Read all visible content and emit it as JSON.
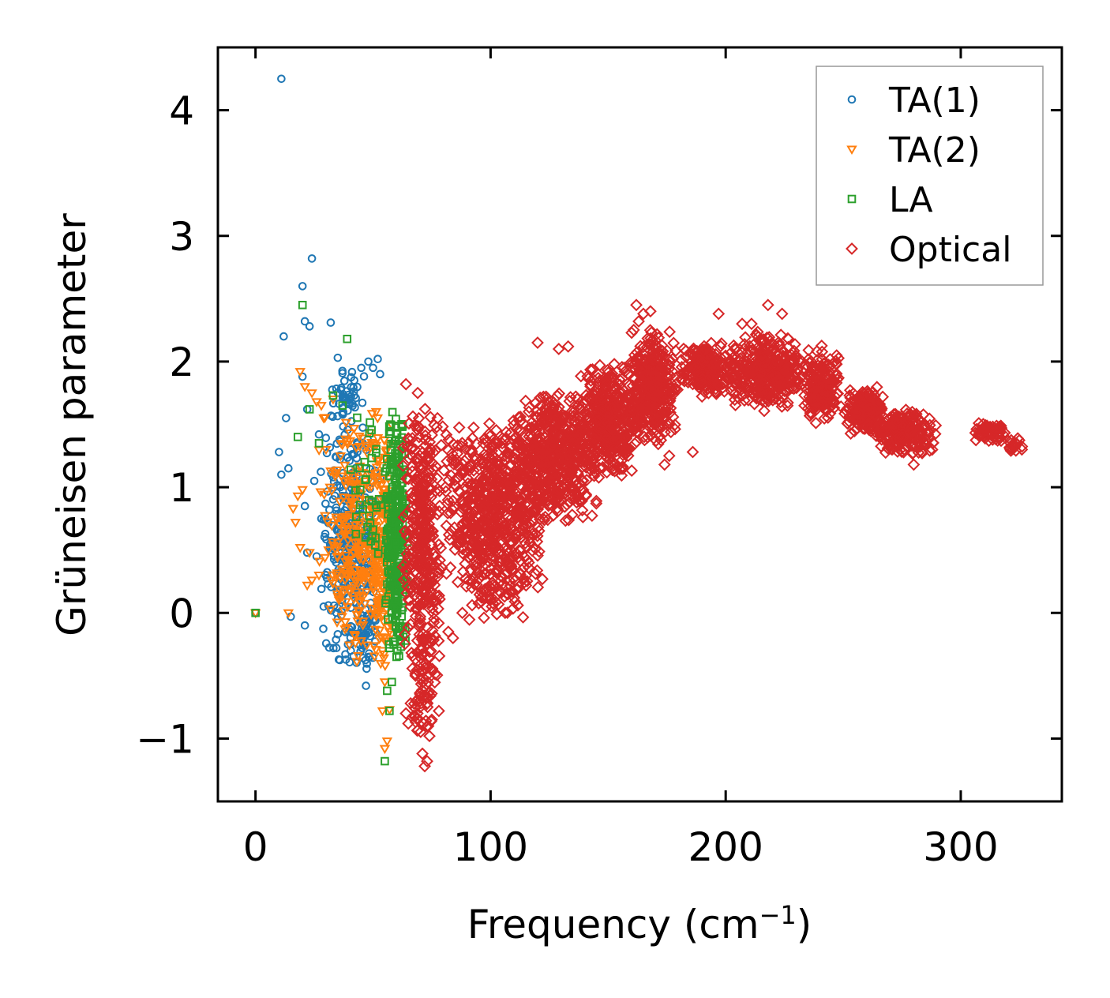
{
  "chart_data": {
    "type": "scatter",
    "title": "",
    "xlabel": "Frequency (cm",
    "xlabel_sup": "−1",
    "xlabel_close": ")",
    "ylabel": "Grüneisen parameter",
    "xlim": [
      -16,
      343
    ],
    "ylim": [
      -1.5,
      4.5
    ],
    "xticks": [
      0,
      100,
      200,
      300
    ],
    "xtick_labels": [
      "0",
      "100",
      "200",
      "300"
    ],
    "yticks": [
      -1,
      0,
      1,
      2,
      3,
      4
    ],
    "ytick_labels": [
      "−1",
      "0",
      "1",
      "2",
      "3",
      "4"
    ],
    "grid": false,
    "legend_position": "top-right",
    "series": [
      {
        "name": "TA(1)",
        "marker": "circle",
        "color": "#1f77b4",
        "points": [
          [
            0,
            0
          ],
          [
            11,
            4.25
          ],
          [
            12,
            2.2
          ],
          [
            10,
            1.28
          ],
          [
            13,
            1.55
          ],
          [
            14,
            1.15
          ],
          [
            11,
            1.1
          ],
          [
            15,
            -0.03
          ],
          [
            20,
            2.6
          ],
          [
            21,
            2.32
          ],
          [
            23,
            2.28
          ],
          [
            24,
            2.82
          ],
          [
            20,
            1.88
          ],
          [
            22,
            1.62
          ],
          [
            25,
            1.05
          ],
          [
            27,
            1.42
          ],
          [
            21,
            0.85
          ],
          [
            22,
            0.48
          ],
          [
            26,
            0.45
          ],
          [
            28,
            0.75
          ],
          [
            29,
            0.05
          ],
          [
            31,
            0.06
          ],
          [
            32,
            2.31
          ],
          [
            35,
            2.03
          ],
          [
            21,
            -0.1
          ],
          [
            38,
            1.72
          ],
          [
            35,
            -0.05
          ],
          [
            36,
            1.0
          ],
          [
            39,
            0.4
          ],
          [
            35,
            -0.17
          ],
          [
            40,
            1.7
          ],
          [
            42,
            1.85
          ],
          [
            45,
            1.95
          ],
          [
            48,
            2.0
          ],
          [
            50,
            1.95
          ],
          [
            52,
            2.02
          ],
          [
            53,
            1.9
          ],
          [
            47,
            -0.58
          ],
          [
            44,
            0.05
          ],
          [
            46,
            0.3
          ]
        ],
        "clusters": [
          {
            "x": [
              27,
              54
            ],
            "y": [
              -0.5,
              1.6
            ],
            "count": 320
          },
          {
            "x": [
              42,
              52
            ],
            "y": [
              -0.45,
              0.1
            ],
            "count": 50
          },
          {
            "x": [
              30,
              48
            ],
            "y": [
              1.5,
              1.95
            ],
            "count": 45
          }
        ]
      },
      {
        "name": "TA(2)",
        "marker": "triangle-down",
        "color": "#ff7f0e",
        "points": [
          [
            0,
            0
          ],
          [
            14,
            0.0
          ],
          [
            18,
            0.93
          ],
          [
            20,
            0.98
          ],
          [
            19,
            0.52
          ],
          [
            23,
            0.48
          ],
          [
            22,
            0.22
          ],
          [
            24,
            0.26
          ],
          [
            17,
            0.72
          ],
          [
            16,
            0.83
          ],
          [
            19,
            1.92
          ],
          [
            21,
            1.8
          ],
          [
            24,
            1.75
          ],
          [
            26,
            1.68
          ],
          [
            28,
            1.65
          ],
          [
            33,
            1.7
          ],
          [
            29,
            1.55
          ],
          [
            30,
            1.3
          ],
          [
            54,
            -0.78
          ],
          [
            56,
            -1.02
          ],
          [
            55,
            -1.08
          ],
          [
            57,
            -0.77
          ],
          [
            55,
            -0.55
          ],
          [
            54,
            -0.3
          ],
          [
            54,
            0.15
          ]
        ],
        "clusters": [
          {
            "x": [
              26,
              58
            ],
            "y": [
              -0.5,
              1.6
            ],
            "count": 280
          },
          {
            "x": [
              48,
              60
            ],
            "y": [
              -0.6,
              1.75
            ],
            "count": 160
          }
        ]
      },
      {
        "name": "LA",
        "marker": "square",
        "color": "#2ca02c",
        "points": [
          [
            0,
            0
          ],
          [
            20,
            2.45
          ],
          [
            39,
            2.18
          ],
          [
            23,
            1.62
          ],
          [
            18,
            1.4
          ],
          [
            27,
            1.35
          ],
          [
            33,
            1.73
          ],
          [
            37,
            1.65
          ],
          [
            55,
            -1.18
          ],
          [
            57,
            -0.78
          ],
          [
            56,
            -0.62
          ],
          [
            58,
            -0.55
          ],
          [
            60,
            -0.35
          ],
          [
            57,
            -0.28
          ],
          [
            61,
            -0.12
          ]
        ],
        "clusters": [
          {
            "x": [
              55,
              65
            ],
            "y": [
              -0.45,
              1.7
            ],
            "count": 320
          },
          {
            "x": [
              40,
              56
            ],
            "y": [
              0.3,
              1.6
            ],
            "count": 35
          }
        ]
      },
      {
        "name": "Optical",
        "marker": "diamond",
        "color": "#d62728",
        "points": [
          [
            72,
            -1.22
          ],
          [
            73,
            -1.18
          ],
          [
            71,
            -1.12
          ],
          [
            74,
            -0.98
          ],
          [
            73,
            -0.9
          ],
          [
            75,
            -0.85
          ],
          [
            78,
            -0.78
          ],
          [
            70,
            -0.7
          ],
          [
            66,
            -0.72
          ],
          [
            64,
            -0.8
          ],
          [
            65,
            -0.88
          ],
          [
            82,
            -0.15
          ],
          [
            84,
            -0.2
          ],
          [
            88,
            0.0
          ],
          [
            92,
            0.2
          ],
          [
            120,
            2.15
          ],
          [
            129,
            2.1
          ],
          [
            133,
            2.12
          ],
          [
            162,
            2.45
          ],
          [
            163,
            2.32
          ],
          [
            165,
            2.38
          ],
          [
            168,
            2.4
          ],
          [
            174,
            1.18
          ],
          [
            176,
            1.25
          ],
          [
            186,
            1.28
          ],
          [
            218,
            2.45
          ],
          [
            224,
            2.38
          ],
          [
            211,
            2.3
          ],
          [
            197,
            2.38
          ],
          [
            207,
            2.3
          ],
          [
            280,
            1.18
          ],
          [
            285,
            1.35
          ],
          [
            326,
            1.3
          ],
          [
            64,
            1.82
          ],
          [
            69,
            1.75
          ]
        ],
        "clusters": [
          {
            "x": [
              62,
              80
            ],
            "y": [
              -0.6,
              1.8
            ],
            "count": 380
          },
          {
            "x": [
              65,
              78
            ],
            "y": [
              -1.0,
              -0.2
            ],
            "count": 60
          },
          {
            "x": [
              78,
              125
            ],
            "y": [
              0.1,
              1.55
            ],
            "count": 650
          },
          {
            "x": [
              85,
              118
            ],
            "y": [
              -0.1,
              0.4
            ],
            "count": 60
          },
          {
            "x": [
              108,
              148
            ],
            "y": [
              0.7,
              1.8
            ],
            "count": 520
          },
          {
            "x": [
              135,
              165
            ],
            "y": [
              1.05,
              2.0
            ],
            "count": 420
          },
          {
            "x": [
              158,
              180
            ],
            "y": [
              1.3,
              2.28
            ],
            "count": 340
          },
          {
            "x": [
              180,
              205
            ],
            "y": [
              1.7,
              2.15
            ],
            "count": 240
          },
          {
            "x": [
              200,
              235
            ],
            "y": [
              1.6,
              2.25
            ],
            "count": 360
          },
          {
            "x": [
              232,
              250
            ],
            "y": [
              1.5,
              2.15
            ],
            "count": 180
          },
          {
            "x": [
              250,
              268
            ],
            "y": [
              1.4,
              1.8
            ],
            "count": 200
          },
          {
            "x": [
              262,
              290
            ],
            "y": [
              1.25,
              1.62
            ],
            "count": 220
          },
          {
            "x": [
              305,
              320
            ],
            "y": [
              1.35,
              1.52
            ],
            "count": 55
          },
          {
            "x": [
              317,
              328
            ],
            "y": [
              1.28,
              1.4
            ],
            "count": 20
          }
        ]
      }
    ]
  }
}
